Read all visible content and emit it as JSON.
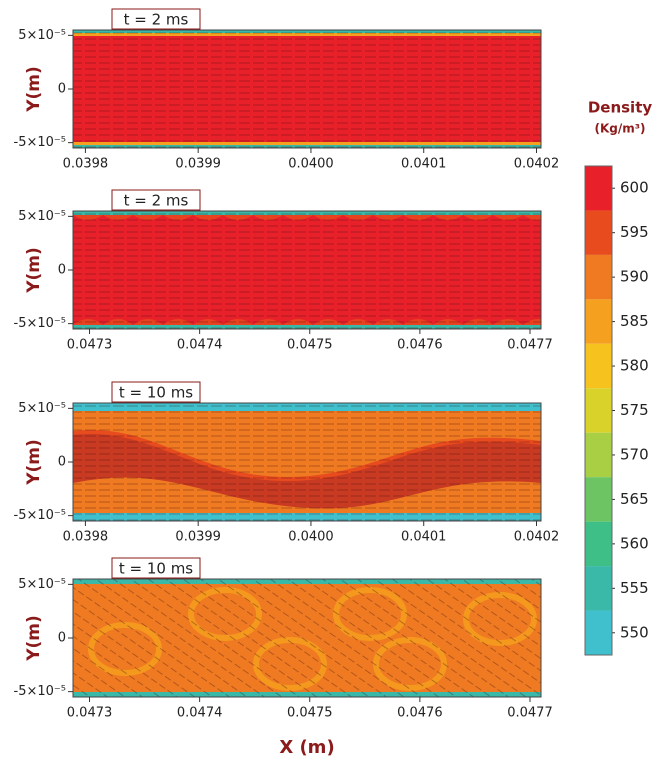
{
  "chart_data": [
    {
      "type": "contour",
      "title": "t = 2 ms",
      "ylabel": "Y(m)",
      "xlim": [
        0.039789,
        0.040204
      ],
      "xticks": [
        0.0398,
        0.0399,
        {
          "value": 0.04,
          "label": "0.0400"
        },
        0.0401,
        0.0402
      ],
      "ylim": [
        -5.5e-05,
        5.5e-05
      ],
      "yticks": [
        {
          "value": 5e-05,
          "label": "5×10⁻⁵"
        },
        0,
        {
          "value": -5e-05,
          "label": "-5×10⁻⁵"
        }
      ]
    },
    {
      "type": "contour",
      "title": "t = 2 ms",
      "ylabel": "Y(m)",
      "xlim": [
        0.047285,
        0.04771
      ],
      "xticks": [
        0.0473,
        0.0474,
        0.0475,
        0.0476,
        0.0477
      ],
      "ylim": [
        -5.5e-05,
        5.5e-05
      ],
      "yticks": [
        {
          "value": 5e-05,
          "label": "5×10⁻⁵"
        },
        0,
        {
          "value": -5e-05,
          "label": "-5×10⁻⁵"
        }
      ]
    },
    {
      "type": "contour",
      "title": "t = 10 ms",
      "ylabel": "Y(m)",
      "xlim": [
        0.039789,
        0.040204
      ],
      "xticks": [
        0.0398,
        0.0399,
        {
          "value": 0.04,
          "label": "0.0400"
        },
        0.0401,
        0.0402
      ],
      "ylim": [
        -5.5e-05,
        5.5e-05
      ],
      "yticks": [
        {
          "value": 5e-05,
          "label": "5×10⁻⁵"
        },
        0,
        {
          "value": -5e-05,
          "label": "-5×10⁻⁵"
        }
      ]
    },
    {
      "type": "contour",
      "title": "t = 10 ms",
      "ylabel": "Y(m)",
      "xlim": [
        0.047285,
        0.04771
      ],
      "xticks": [
        0.0473,
        0.0474,
        0.0475,
        0.0476,
        0.0477
      ],
      "ylim": [
        -5.5e-05,
        5.5e-05
      ],
      "yticks": [
        {
          "value": 5e-05,
          "label": "5×10⁻⁵"
        },
        0,
        {
          "value": -5e-05,
          "label": "-5×10⁻⁵"
        }
      ]
    }
  ],
  "xlabel": "X (m)",
  "colorbar": {
    "title": "Density",
    "unit": "(Kg/m³)",
    "clim": [
      547.5,
      602.5
    ],
    "ticks": [
      600,
      595,
      590,
      585,
      580,
      575,
      570,
      565,
      560,
      555,
      550
    ],
    "colors": [
      "#e8202a",
      "#e84b1e",
      "#ef7a22",
      "#f5a01e",
      "#f5c21e",
      "#d9d22a",
      "#a9cf45",
      "#6cc462",
      "#3fbf88",
      "#3ab8a8",
      "#3fc0cc"
    ]
  }
}
